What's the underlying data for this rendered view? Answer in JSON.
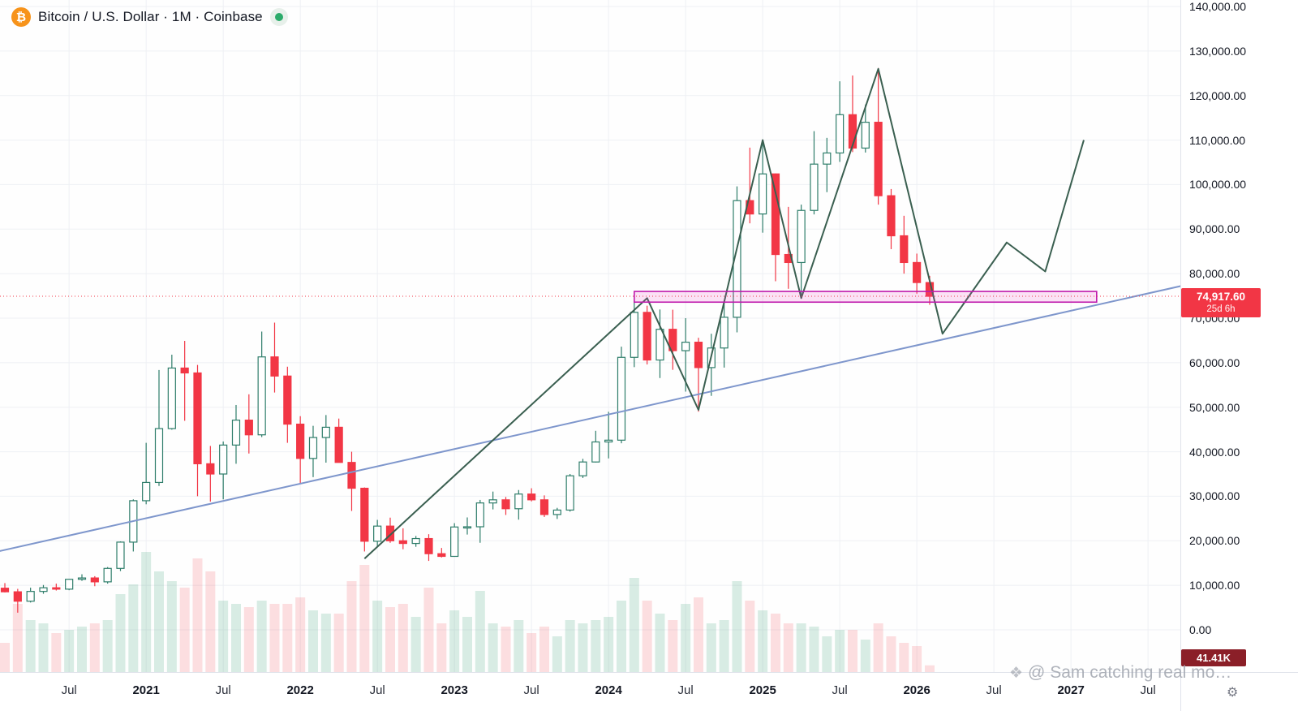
{
  "header": {
    "title": "Bitcoin / U.S. Dollar · 1M · Coinbase",
    "symbol_icon_glyph": "₿",
    "market_status_dot_color": "#2bab6a"
  },
  "price_label": {
    "price": "74,917.60",
    "value": 74917.6,
    "countdown": "25d 6h"
  },
  "volume_label": {
    "value": "41.41K"
  },
  "watermark": {
    "icon": "❖",
    "text": "@ Sam catching real mo…"
  },
  "corner": {
    "gear_icon": "⚙"
  },
  "chart_data": {
    "type": "candlestick",
    "title": "Bitcoin / U.S. Dollar",
    "interval": "1M",
    "exchange": "Coinbase",
    "ylim": [
      0,
      140000
    ],
    "grid": true,
    "price_ticks": [
      [
        140000,
        "140,000.00"
      ],
      [
        130000,
        "130,000.00"
      ],
      [
        120000,
        "120,000.00"
      ],
      [
        110000,
        "110,000.00"
      ],
      [
        100000,
        "100,000.00"
      ],
      [
        90000,
        "90,000.00"
      ],
      [
        80000,
        "80,000.00"
      ],
      [
        70000,
        "70,000.00"
      ],
      [
        60000,
        "60,000.00"
      ],
      [
        50000,
        "50,000.00"
      ],
      [
        40000,
        "40,000.00"
      ],
      [
        30000,
        "30,000.00"
      ],
      [
        20000,
        "20,000.00"
      ],
      [
        10000,
        "10,000.00"
      ],
      [
        0,
        "0.00"
      ]
    ],
    "time_ticks": [
      [
        "2020-07",
        "Jul"
      ],
      [
        "2021-01",
        "2021"
      ],
      [
        "2021-07",
        "Jul"
      ],
      [
        "2022-01",
        "2022"
      ],
      [
        "2022-07",
        "Jul"
      ],
      [
        "2023-01",
        "2023"
      ],
      [
        "2023-07",
        "Jul"
      ],
      [
        "2024-01",
        "2024"
      ],
      [
        "2024-07",
        "Jul"
      ],
      [
        "2025-01",
        "2025"
      ],
      [
        "2025-07",
        "Jul"
      ],
      [
        "2026-01",
        "2026"
      ],
      [
        "2026-07",
        "Jul"
      ],
      [
        "2027-01",
        "2027"
      ],
      [
        "2027-07",
        "Jul"
      ]
    ],
    "volume_axis_max": 750,
    "candles": [
      [
        "2020-02",
        9350,
        10500,
        8400,
        8543,
        180
      ],
      [
        "2020-03",
        8543,
        9200,
        3850,
        6430,
        420
      ],
      [
        "2020-04",
        6430,
        9470,
        6140,
        8630,
        320
      ],
      [
        "2020-05",
        8630,
        10070,
        8100,
        9450,
        300
      ],
      [
        "2020-06",
        9450,
        10380,
        8830,
        9140,
        240
      ],
      [
        "2020-07",
        9140,
        11450,
        8900,
        11350,
        260
      ],
      [
        "2020-08",
        11350,
        12480,
        11000,
        11650,
        280
      ],
      [
        "2020-09",
        11650,
        12050,
        9800,
        10780,
        300
      ],
      [
        "2020-10",
        10780,
        14100,
        10380,
        13800,
        320
      ],
      [
        "2020-11",
        13800,
        19860,
        13200,
        19700,
        480
      ],
      [
        "2020-12",
        19700,
        29300,
        17600,
        29000,
        540
      ],
      [
        "2021-01",
        29000,
        42000,
        28200,
        33100,
        740
      ],
      [
        "2021-02",
        33100,
        58350,
        32300,
        45200,
        620
      ],
      [
        "2021-03",
        45200,
        61800,
        44950,
        58800,
        560
      ],
      [
        "2021-04",
        58800,
        64900,
        46950,
        57700,
        520
      ],
      [
        "2021-05",
        57700,
        59500,
        30000,
        37300,
        700
      ],
      [
        "2021-06",
        37300,
        41300,
        28800,
        35000,
        620
      ],
      [
        "2021-07",
        35000,
        42300,
        29300,
        41500,
        440
      ],
      [
        "2021-08",
        41500,
        50500,
        37300,
        47100,
        420
      ],
      [
        "2021-09",
        47100,
        52900,
        39600,
        43800,
        400
      ],
      [
        "2021-10",
        43800,
        67000,
        43300,
        61300,
        440
      ],
      [
        "2021-11",
        61300,
        69000,
        53300,
        57000,
        420
      ],
      [
        "2021-12",
        57000,
        59100,
        42000,
        46200,
        420
      ],
      [
        "2022-01",
        46200,
        47990,
        32950,
        38500,
        460
      ],
      [
        "2022-02",
        38500,
        45820,
        34300,
        43200,
        380
      ],
      [
        "2022-03",
        43200,
        48240,
        37550,
        45500,
        360
      ],
      [
        "2022-04",
        45500,
        47450,
        37580,
        37600,
        360
      ],
      [
        "2022-05",
        37600,
        40000,
        26700,
        31800,
        560
      ],
      [
        "2022-06",
        31800,
        31980,
        17600,
        19900,
        660
      ],
      [
        "2022-07",
        19900,
        24700,
        18800,
        23300,
        440
      ],
      [
        "2022-08",
        23300,
        25200,
        19550,
        20000,
        400
      ],
      [
        "2022-09",
        20000,
        22800,
        18100,
        19400,
        420
      ],
      [
        "2022-10",
        19400,
        21080,
        18650,
        20500,
        340
      ],
      [
        "2022-11",
        20500,
        21480,
        15480,
        17100,
        520
      ],
      [
        "2022-12",
        17100,
        18390,
        16260,
        16500,
        300
      ],
      [
        "2023-01",
        16500,
        23960,
        16490,
        23100,
        380
      ],
      [
        "2023-02",
        23100,
        25250,
        21400,
        23150,
        340
      ],
      [
        "2023-03",
        23150,
        29180,
        19550,
        28500,
        500
      ],
      [
        "2023-04",
        28500,
        31050,
        27050,
        29200,
        300
      ],
      [
        "2023-05",
        29200,
        29840,
        25800,
        27200,
        280
      ],
      [
        "2023-06",
        27200,
        31400,
        24750,
        30500,
        320
      ],
      [
        "2023-07",
        30500,
        31800,
        28850,
        29200,
        240
      ],
      [
        "2023-08",
        29200,
        30200,
        25350,
        25900,
        280
      ],
      [
        "2023-09",
        25900,
        27400,
        24900,
        26900,
        220
      ],
      [
        "2023-10",
        26900,
        35000,
        26550,
        34600,
        320
      ],
      [
        "2023-11",
        34600,
        38400,
        34100,
        37700,
        300
      ],
      [
        "2023-12",
        37700,
        44700,
        37600,
        42200,
        320
      ],
      [
        "2024-01",
        42200,
        48970,
        38500,
        42600,
        340
      ],
      [
        "2024-02",
        42600,
        63600,
        41900,
        61200,
        440
      ],
      [
        "2024-03",
        61200,
        73800,
        59000,
        71300,
        580
      ],
      [
        "2024-04",
        71300,
        72800,
        59600,
        60600,
        440
      ],
      [
        "2024-05",
        60600,
        71950,
        56550,
        67500,
        360
      ],
      [
        "2024-06",
        67500,
        71900,
        58400,
        62700,
        320
      ],
      [
        "2024-07",
        62700,
        70000,
        53500,
        64600,
        420
      ],
      [
        "2024-08",
        64600,
        65600,
        49000,
        58900,
        460
      ],
      [
        "2024-09",
        58900,
        66500,
        52550,
        63300,
        300
      ],
      [
        "2024-10",
        63300,
        73600,
        58900,
        70200,
        320
      ],
      [
        "2024-11",
        70200,
        99600,
        66800,
        96400,
        560
      ],
      [
        "2024-12",
        96400,
        108300,
        91300,
        93400,
        440
      ],
      [
        "2025-01",
        93400,
        109350,
        89200,
        102400,
        380
      ],
      [
        "2025-02",
        102400,
        102500,
        78300,
        84300,
        360
      ],
      [
        "2025-03",
        84300,
        95000,
        76600,
        82500,
        300
      ],
      [
        "2025-04",
        82500,
        95500,
        74500,
        94200,
        300
      ],
      [
        "2025-05",
        94200,
        112000,
        93300,
        104600,
        280
      ],
      [
        "2025-06",
        104600,
        110500,
        98300,
        107100,
        220
      ],
      [
        "2025-07",
        107100,
        123200,
        105100,
        115700,
        260
      ],
      [
        "2025-08",
        115700,
        124500,
        107300,
        108200,
        260
      ],
      [
        "2025-09",
        108200,
        118000,
        107200,
        114000,
        200
      ],
      [
        "2025-10",
        114000,
        126200,
        95500,
        97500,
        300
      ],
      [
        "2025-11",
        97500,
        99000,
        85500,
        88500,
        220
      ],
      [
        "2025-12",
        88500,
        93000,
        80000,
        82500,
        180
      ],
      [
        "2026-01",
        82500,
        84500,
        75500,
        78000,
        160
      ],
      [
        "2026-02",
        78000,
        79500,
        73000,
        74917.6,
        41.41
      ]
    ],
    "drawings": {
      "trendline": {
        "points": [
          [
            "2020-01",
            17300
          ],
          [
            "2027-10",
            77500
          ]
        ],
        "color": "#7e96cc",
        "width": 2
      },
      "zigzag": {
        "points": [
          [
            "2022-06",
            16000
          ],
          [
            "2024-04",
            74500
          ],
          [
            "2024-08",
            49400
          ],
          [
            "2025-01",
            110000
          ],
          [
            "2025-04",
            74500
          ],
          [
            "2025-10",
            126000
          ],
          [
            "2026-03",
            66500
          ],
          [
            "2026-08",
            87000
          ],
          [
            "2026-11",
            80500
          ],
          [
            "2027-02",
            110000
          ]
        ],
        "color": "#3a5f50",
        "width": 2
      },
      "box": {
        "from": "2024-03",
        "to": "2027-03",
        "top": 76000,
        "bottom": 73600,
        "border": "#bf1bad",
        "fill": "rgba(236,72,201,0.16)"
      },
      "price_line": {
        "value": 74917.6,
        "color": "#f23645",
        "style": "dotted"
      }
    },
    "colors": {
      "up": "#2e7d6a",
      "up_fill": "#ffffff",
      "down": "#f23645",
      "vol_up": "rgba(42,157,110,0.18)",
      "vol_down": "rgba(242,54,69,0.16)",
      "grid": "#eef0f4",
      "axis_text": "#131722",
      "label_bg": "#f23645",
      "vol_label_bg": "#8b1f28"
    }
  }
}
